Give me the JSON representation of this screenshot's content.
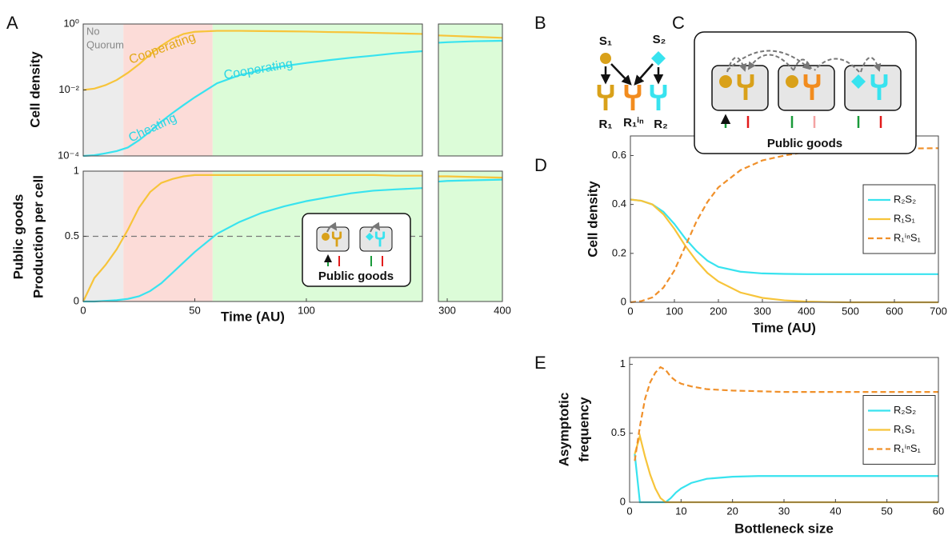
{
  "panel_labels": [
    "A",
    "B",
    "C",
    "D",
    "E"
  ],
  "diagram_b": {
    "s1": "S₁",
    "s2": "S₂",
    "r1": "R₁",
    "r1in": "R₁ⁱⁿ",
    "r2": "R₂"
  },
  "diagram_c": {
    "caption": "Public goods"
  },
  "chart_data": [
    {
      "type": "line",
      "ylabel": [
        "Cell density"
      ],
      "log_y": true,
      "annotations": [
        "No",
        "Quorum",
        "Cooperating",
        "Cooperating",
        "Cheating"
      ],
      "xlim": [
        0,
        152
      ],
      "xlim2": [
        284,
        400
      ],
      "ylim": [
        0.0001,
        1
      ],
      "yticks": [
        {
          "value": 1,
          "label": "10⁰"
        },
        {
          "value": 0.01,
          "label": "10⁻²"
        },
        {
          "value": 0.0001,
          "label": "10⁻⁴"
        }
      ],
      "regions": [
        {
          "from": 0,
          "to": 18,
          "color": "#ececec"
        },
        {
          "from": 18,
          "to": 58,
          "color": "#fcdcd8"
        },
        {
          "from": 58,
          "to": 400,
          "color": "#dcfcd8"
        }
      ],
      "x": [
        0,
        5,
        10,
        15,
        20,
        25,
        30,
        35,
        40,
        45,
        50,
        60,
        70,
        80,
        90,
        100,
        110,
        120,
        130,
        140,
        152
      ],
      "x2": [
        284,
        300,
        350,
        400
      ],
      "series": [
        {
          "color": "#f7c43a",
          "values": [
            0.01,
            0.011,
            0.014,
            0.02,
            0.033,
            0.06,
            0.12,
            0.22,
            0.36,
            0.5,
            0.58,
            0.62,
            0.62,
            0.61,
            0.6,
            0.59,
            0.57,
            0.56,
            0.54,
            0.52,
            0.5
          ],
          "values2": [
            0.45,
            0.44,
            0.41,
            0.38
          ]
        },
        {
          "color": "#38e3ef",
          "values": [
            0.0001,
            0.000105,
            0.00012,
            0.00014,
            0.00018,
            0.0003,
            0.00055,
            0.0011,
            0.002,
            0.0035,
            0.006,
            0.016,
            0.028,
            0.04,
            0.053,
            0.066,
            0.08,
            0.095,
            0.11,
            0.13,
            0.15
          ],
          "values2": [
            0.27,
            0.28,
            0.3,
            0.31
          ]
        }
      ]
    },
    {
      "type": "line",
      "ylabel": [
        "Public goods",
        "Production per cell"
      ],
      "xlabel": "Time (AU)",
      "inset_caption": "Public goods",
      "xlim": [
        0,
        152
      ],
      "xlim2": [
        284,
        400
      ],
      "xticks": [
        0,
        50,
        100
      ],
      "xticks2": [
        300,
        400
      ],
      "ylim": [
        0,
        1
      ],
      "yticks": [
        0,
        0.5,
        1
      ],
      "reference_line": 0.5,
      "regions": [
        {
          "from": 0,
          "to": 18,
          "color": "#ececec"
        },
        {
          "from": 18,
          "to": 58,
          "color": "#fcdcd8"
        },
        {
          "from": 58,
          "to": 400,
          "color": "#dcfcd8"
        }
      ],
      "x": [
        0,
        5,
        10,
        15,
        20,
        25,
        30,
        35,
        40,
        45,
        50,
        60,
        70,
        80,
        90,
        100,
        110,
        120,
        130,
        140,
        152
      ],
      "x2": [
        284,
        300,
        350,
        400
      ],
      "series": [
        {
          "color": "#f7c43a",
          "values": [
            0,
            0.18,
            0.28,
            0.4,
            0.55,
            0.72,
            0.84,
            0.91,
            0.94,
            0.96,
            0.97,
            0.97,
            0.97,
            0.97,
            0.97,
            0.97,
            0.97,
            0.97,
            0.97,
            0.965,
            0.965
          ],
          "values2": [
            0.96,
            0.96,
            0.955,
            0.95
          ]
        },
        {
          "color": "#38e3ef",
          "values": [
            0,
            0,
            0.005,
            0.01,
            0.02,
            0.04,
            0.08,
            0.14,
            0.22,
            0.3,
            0.38,
            0.52,
            0.61,
            0.68,
            0.73,
            0.77,
            0.8,
            0.83,
            0.85,
            0.86,
            0.87
          ],
          "values2": [
            0.92,
            0.925,
            0.93,
            0.935
          ]
        }
      ]
    },
    {
      "type": "line",
      "ylabel": [
        "Cell density"
      ],
      "xlabel": "Time (AU)",
      "legend": "center right",
      "xlim": [
        0,
        700
      ],
      "xticks": [
        0,
        100,
        200,
        300,
        400,
        500,
        600,
        700
      ],
      "ylim": [
        0,
        0.68
      ],
      "yticks": [
        0,
        0.2,
        0.4,
        0.6
      ],
      "x": [
        0,
        25,
        50,
        75,
        100,
        125,
        150,
        175,
        200,
        250,
        300,
        350,
        400,
        450,
        500,
        600,
        700
      ],
      "series": [
        {
          "name": "R₂S₂",
          "color": "#38e3ef",
          "values": [
            0.42,
            0.415,
            0.4,
            0.37,
            0.32,
            0.26,
            0.21,
            0.17,
            0.145,
            0.125,
            0.118,
            0.116,
            0.115,
            0.115,
            0.115,
            0.115,
            0.115
          ]
        },
        {
          "name": "R₁S₁",
          "color": "#f7c43a",
          "values": [
            0.42,
            0.415,
            0.4,
            0.36,
            0.3,
            0.23,
            0.17,
            0.12,
            0.085,
            0.04,
            0.018,
            0.008,
            0.003,
            0.001,
            0,
            0,
            0
          ]
        },
        {
          "name": "R₁ⁱⁿS₁",
          "color": "#f0902a",
          "dash": true,
          "values": [
            0,
            0.005,
            0.02,
            0.06,
            0.13,
            0.23,
            0.33,
            0.41,
            0.47,
            0.54,
            0.58,
            0.6,
            0.615,
            0.62,
            0.625,
            0.628,
            0.63
          ]
        }
      ]
    },
    {
      "type": "line",
      "ylabel": [
        "Asymptotic",
        "frequency"
      ],
      "xlabel": "Bottleneck size",
      "legend": "center right",
      "xlim": [
        0,
        60
      ],
      "xticks": [
        0,
        10,
        20,
        30,
        40,
        50,
        60
      ],
      "ylim": [
        0,
        1.05
      ],
      "yticks": [
        0,
        0.5,
        1
      ],
      "x": [
        1,
        2,
        3,
        4,
        5,
        6,
        7,
        8,
        9,
        10,
        12,
        15,
        20,
        25,
        30,
        40,
        50,
        60
      ],
      "series": [
        {
          "name": "R₂S₂",
          "color": "#38e3ef",
          "values": [
            0.35,
            0,
            0,
            0,
            0,
            0,
            0,
            0.03,
            0.07,
            0.1,
            0.14,
            0.17,
            0.185,
            0.19,
            0.19,
            0.19,
            0.19,
            0.19
          ]
        },
        {
          "name": "R₁S₁",
          "color": "#f7c43a",
          "values": [
            0.35,
            0.48,
            0.33,
            0.2,
            0.1,
            0.03,
            0,
            0,
            0,
            0,
            0,
            0,
            0,
            0,
            0,
            0,
            0,
            0
          ]
        },
        {
          "name": "R₁ⁱⁿS₁",
          "color": "#f0902a",
          "dash": true,
          "values": [
            0.3,
            0.55,
            0.75,
            0.87,
            0.94,
            0.98,
            0.96,
            0.91,
            0.88,
            0.86,
            0.84,
            0.82,
            0.81,
            0.805,
            0.8,
            0.8,
            0.8,
            0.8
          ]
        }
      ]
    }
  ]
}
